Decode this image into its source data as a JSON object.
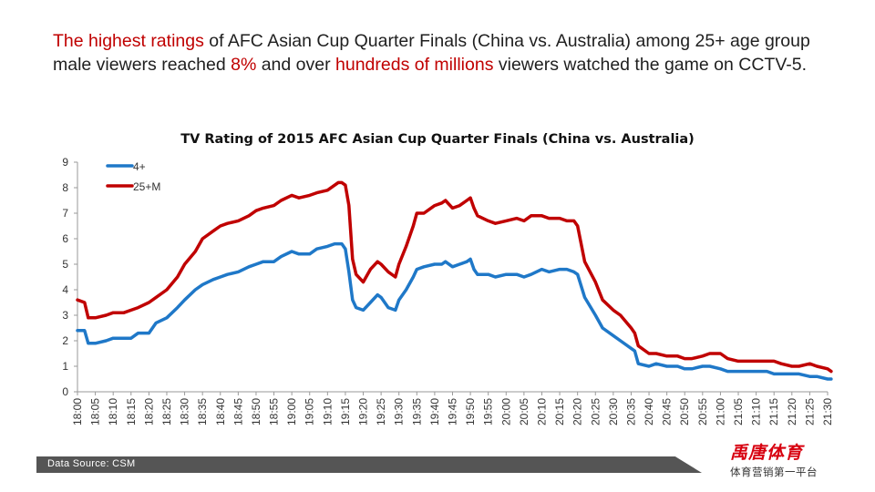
{
  "headline": {
    "seg1": "The highest ratings",
    "seg2": " of AFC Asian Cup Quarter Finals (China vs. Australia) among 25+ age group male viewers reached ",
    "seg3": "8%",
    "seg4": " and over ",
    "seg5": "hundreds of millions",
    "seg6": " viewers watched the game on CCTV-5."
  },
  "footer": {
    "source": "Data Source: CSM"
  },
  "logo": {
    "main": "禹唐体育",
    "sub": "体育营销第一平台"
  },
  "colors": {
    "accent_red": "#c00000",
    "series_blue": "#1f78c8",
    "series_red": "#c00000",
    "footer_bar": "#555555"
  },
  "chart_data": {
    "type": "line",
    "title": "TV Rating of 2015 AFC Asian Cup Quarter Finals (China vs. Australia)",
    "xlabel": "",
    "ylabel": "",
    "ylim": [
      0,
      9
    ],
    "yticks": [
      0,
      1,
      2,
      3,
      4,
      5,
      6,
      7,
      8,
      9
    ],
    "grid": false,
    "legend_position": "top-left",
    "xticks": [
      "18:00",
      "18:05",
      "18:10",
      "18:15",
      "18:20",
      "18:25",
      "18:30",
      "18:35",
      "18:40",
      "18:45",
      "18:50",
      "18:55",
      "19:00",
      "19:05",
      "19:10",
      "19:15",
      "19:20",
      "19:25",
      "19:30",
      "19:35",
      "19:40",
      "19:45",
      "19:50",
      "19:55",
      "20:00",
      "20:05",
      "20:10",
      "20:15",
      "20:20",
      "20:25",
      "20:30",
      "20:35",
      "20:40",
      "20:45",
      "20:50",
      "20:55",
      "21:00",
      "21:05",
      "21:10",
      "21:15",
      "21:20",
      "21:25",
      "21:30"
    ],
    "x": [
      "18:00",
      "18:02",
      "18:03",
      "18:05",
      "18:08",
      "18:10",
      "18:13",
      "18:15",
      "18:17",
      "18:20",
      "18:22",
      "18:25",
      "18:28",
      "18:30",
      "18:33",
      "18:35",
      "18:38",
      "18:40",
      "18:42",
      "18:45",
      "18:48",
      "18:50",
      "18:52",
      "18:55",
      "18:57",
      "19:00",
      "19:02",
      "19:05",
      "19:07",
      "19:10",
      "19:12",
      "19:13",
      "19:14",
      "19:15",
      "19:16",
      "19:17",
      "19:18",
      "19:20",
      "19:22",
      "19:24",
      "19:25",
      "19:27",
      "19:29",
      "19:30",
      "19:32",
      "19:34",
      "19:35",
      "19:37",
      "19:40",
      "19:42",
      "19:43",
      "19:45",
      "19:47",
      "19:49",
      "19:50",
      "19:51",
      "19:52",
      "19:55",
      "19:57",
      "20:00",
      "20:03",
      "20:05",
      "20:07",
      "20:10",
      "20:12",
      "20:15",
      "20:17",
      "20:19",
      "20:20",
      "20:22",
      "20:25",
      "20:27",
      "20:30",
      "20:32",
      "20:35",
      "20:36",
      "20:37",
      "20:40",
      "20:42",
      "20:45",
      "20:48",
      "20:50",
      "20:52",
      "20:55",
      "20:57",
      "21:00",
      "21:02",
      "21:05",
      "21:08",
      "21:10",
      "21:13",
      "21:15",
      "21:17",
      "21:20",
      "21:22",
      "21:25",
      "21:27",
      "21:30",
      "21:31"
    ],
    "series": [
      {
        "name": "4+",
        "color": "#1f78c8",
        "values": [
          2.4,
          2.4,
          1.9,
          1.9,
          2.0,
          2.1,
          2.1,
          2.1,
          2.3,
          2.3,
          2.7,
          2.9,
          3.3,
          3.6,
          4.0,
          4.2,
          4.4,
          4.5,
          4.6,
          4.7,
          4.9,
          5.0,
          5.1,
          5.1,
          5.3,
          5.5,
          5.4,
          5.4,
          5.6,
          5.7,
          5.8,
          5.8,
          5.8,
          5.6,
          4.7,
          3.6,
          3.3,
          3.2,
          3.5,
          3.8,
          3.7,
          3.3,
          3.2,
          3.6,
          4.0,
          4.5,
          4.8,
          4.9,
          5.0,
          5.0,
          5.1,
          4.9,
          5.0,
          5.1,
          5.2,
          4.8,
          4.6,
          4.6,
          4.5,
          4.6,
          4.6,
          4.5,
          4.6,
          4.8,
          4.7,
          4.8,
          4.8,
          4.7,
          4.6,
          3.7,
          3.0,
          2.5,
          2.2,
          2.0,
          1.7,
          1.6,
          1.1,
          1.0,
          1.1,
          1.0,
          1.0,
          0.9,
          0.9,
          1.0,
          1.0,
          0.9,
          0.8,
          0.8,
          0.8,
          0.8,
          0.8,
          0.7,
          0.7,
          0.7,
          0.7,
          0.6,
          0.6,
          0.5,
          0.5
        ]
      },
      {
        "name": "25+M",
        "color": "#c00000",
        "values": [
          3.6,
          3.5,
          2.9,
          2.9,
          3.0,
          3.1,
          3.1,
          3.2,
          3.3,
          3.5,
          3.7,
          4.0,
          4.5,
          5.0,
          5.5,
          6.0,
          6.3,
          6.5,
          6.6,
          6.7,
          6.9,
          7.1,
          7.2,
          7.3,
          7.5,
          7.7,
          7.6,
          7.7,
          7.8,
          7.9,
          8.1,
          8.2,
          8.2,
          8.1,
          7.3,
          5.2,
          4.6,
          4.3,
          4.8,
          5.1,
          5.0,
          4.7,
          4.5,
          5.0,
          5.7,
          6.5,
          7.0,
          7.0,
          7.3,
          7.4,
          7.5,
          7.2,
          7.3,
          7.5,
          7.6,
          7.2,
          6.9,
          6.7,
          6.6,
          6.7,
          6.8,
          6.7,
          6.9,
          6.9,
          6.8,
          6.8,
          6.7,
          6.7,
          6.5,
          5.1,
          4.3,
          3.6,
          3.2,
          3.0,
          2.5,
          2.3,
          1.8,
          1.5,
          1.5,
          1.4,
          1.4,
          1.3,
          1.3,
          1.4,
          1.5,
          1.5,
          1.3,
          1.2,
          1.2,
          1.2,
          1.2,
          1.2,
          1.1,
          1.0,
          1.0,
          1.1,
          1.0,
          0.9,
          0.8
        ]
      }
    ]
  }
}
